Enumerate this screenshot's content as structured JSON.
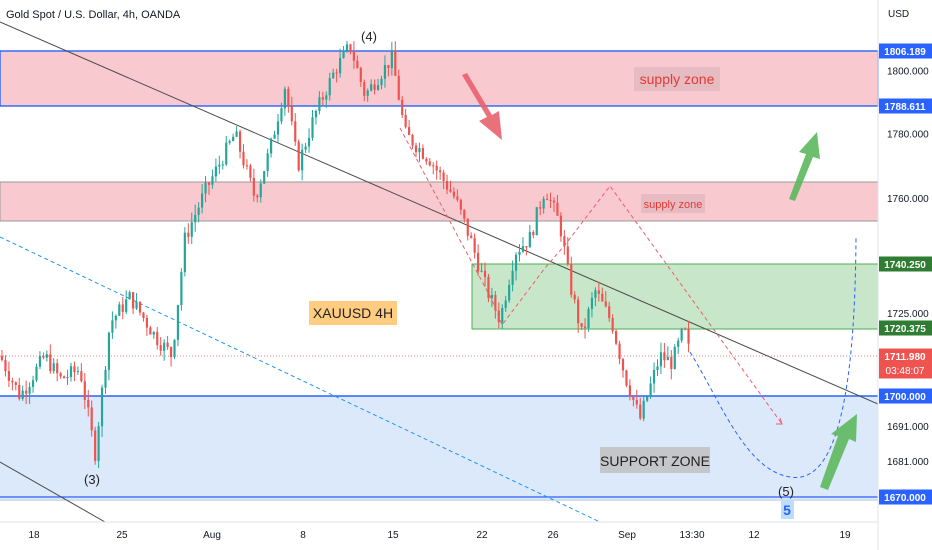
{
  "title": "Gold Spot / U.S. Dollar, 4h, OANDA",
  "currency": "USD",
  "annotations": {
    "supply_zone_upper": "supply zone",
    "supply_zone_lower": "supply zone",
    "support_zone": "SUPPORT ZONE",
    "symbol_label": "XAUUSD 4H",
    "wave_3": "(3)",
    "wave_4": "(4)",
    "wave_5": "(5)",
    "wave_5_marker": "5"
  },
  "colors": {
    "up": "#26a69a",
    "down": "#ef5350",
    "supply": "#f8c9cf",
    "demand": "#c8e6c9",
    "support": "#dbe9fb",
    "level_line": "#2962ff",
    "arrow_green": "#5cb85c",
    "arrow_red": "#e8606d"
  },
  "chart_data": {
    "type": "candlestick",
    "instrument": "XAUUSD",
    "timeframe": "4h",
    "y_ticks": [
      1800,
      1780,
      1760,
      1725,
      1691,
      1681
    ],
    "y_tick_labels": [
      "1800.000",
      "1780.000",
      "1760.000",
      "1725.000",
      "1691.000",
      "1681.000"
    ],
    "price_labels": [
      {
        "value": 1806.189,
        "text": "1806.189",
        "style": "blue"
      },
      {
        "value": 1788.611,
        "text": "1788.611",
        "style": "blue"
      },
      {
        "value": 1740.25,
        "text": "1740.250",
        "style": "green"
      },
      {
        "value": 1720.375,
        "text": "1720.375",
        "style": "green"
      },
      {
        "value": 1711.98,
        "text": "1711.980",
        "style": "current"
      },
      {
        "value": 1700.0,
        "text": "1700.000",
        "style": "blue"
      },
      {
        "value": 1670.0,
        "text": "1670.000",
        "style": "blue"
      }
    ],
    "countdown": "03:48:07",
    "x_ticks": [
      "18",
      "25",
      "Aug",
      "8",
      "15",
      "22",
      "26",
      "Sep",
      "13:30",
      "12",
      "19"
    ],
    "zones": [
      {
        "kind": "supply",
        "from": 1788.611,
        "to": 1806.189
      },
      {
        "kind": "supply",
        "from": 1751.5,
        "to": 1763.5
      },
      {
        "kind": "demand",
        "from": 1720.375,
        "to": 1740.25
      },
      {
        "kind": "support",
        "from": 1670.0,
        "to": 1700.0
      }
    ],
    "current_price": 1711.98
  }
}
